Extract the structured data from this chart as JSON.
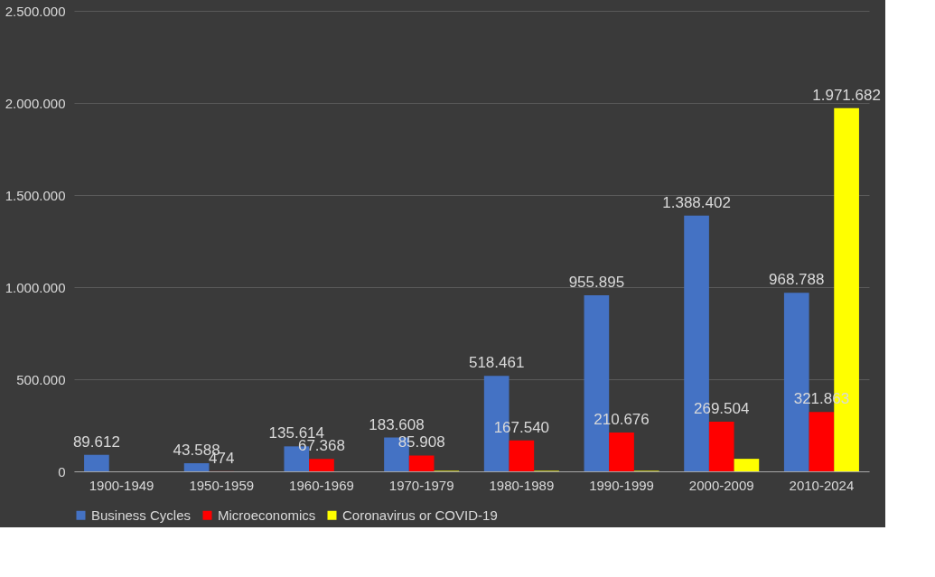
{
  "chart_data": {
    "type": "bar",
    "categories": [
      "1900-1949",
      "1950-1959",
      "1960-1969",
      "1970-1979",
      "1980-1989",
      "1990-1999",
      "2000-2009",
      "2010-2024"
    ],
    "series": [
      {
        "name": "Business Cycles",
        "color": "#4472c4",
        "values": [
          89612,
          43588,
          135614,
          183608,
          518461,
          955895,
          1388402,
          968788
        ],
        "value_labels": [
          "89.612",
          "43.588",
          "135.614",
          "183.608",
          "518.461",
          "955.895",
          "1.388.402",
          "968.788"
        ]
      },
      {
        "name": "Microeconomics",
        "color": "#ff0000",
        "values": [
          0,
          474,
          67368,
          85908,
          167540,
          210676,
          269504,
          321863
        ],
        "value_labels": [
          null,
          "474",
          "67.368",
          "85.908",
          "167.540",
          "210.676",
          "269.504",
          "321.863"
        ]
      },
      {
        "name": "Coronavirus or COVID-19",
        "color": "#ffff00",
        "values": [
          0,
          0,
          0,
          3000,
          3000,
          3000,
          68000,
          1971682
        ],
        "value_labels": [
          null,
          null,
          null,
          null,
          null,
          null,
          null,
          "1.971.682"
        ]
      }
    ],
    "ylim": [
      0,
      2500000
    ],
    "yticks": [
      {
        "value": 0,
        "label": "0"
      },
      {
        "value": 500000,
        "label": "500.000"
      },
      {
        "value": 1000000,
        "label": "1.000.000"
      },
      {
        "value": 1500000,
        "label": "1.500.000"
      },
      {
        "value": 2000000,
        "label": "2.000.000"
      },
      {
        "value": 2500000,
        "label": "2.500.000"
      }
    ],
    "grid": "y",
    "legend": "bottom"
  }
}
